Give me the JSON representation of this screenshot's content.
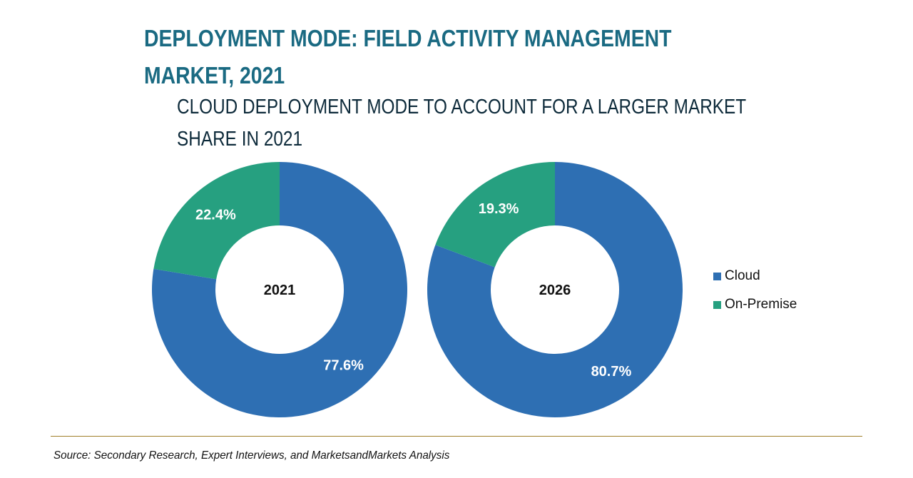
{
  "header": {
    "title": "DEPLOYMENT MODE: FIELD ACTIVITY MANAGEMENT MARKET, 2021",
    "subtitle": "CLOUD DEPLOYMENT MODE TO ACCOUNT FOR A LARGER MARKET SHARE IN 2021"
  },
  "footer": {
    "source": "Source: Secondary Research, Expert Interviews, and MarketsandMarkets Analysis"
  },
  "colors": {
    "cloud": "#2e6fb3",
    "on_premise": "#26a080",
    "title": "#1a6a82",
    "rule": "#a07f2a"
  },
  "chart_data": [
    {
      "type": "pie",
      "variant": "donut",
      "center_label": "2021",
      "categories": [
        "Cloud",
        "On-Premise"
      ],
      "values": [
        77.6,
        22.4
      ],
      "labels": [
        "77.6%",
        "22.4%"
      ],
      "unit": "%"
    },
    {
      "type": "pie",
      "variant": "donut",
      "center_label": "2026",
      "categories": [
        "Cloud",
        "On-Premise"
      ],
      "values": [
        80.7,
        19.3
      ],
      "labels": [
        "80.7%",
        "19.3%"
      ],
      "unit": "%"
    }
  ],
  "legend": {
    "placement": "right",
    "items": [
      {
        "label": "Cloud",
        "color": "#2e6fb3"
      },
      {
        "label": "On-Premise",
        "color": "#26a080"
      }
    ]
  }
}
